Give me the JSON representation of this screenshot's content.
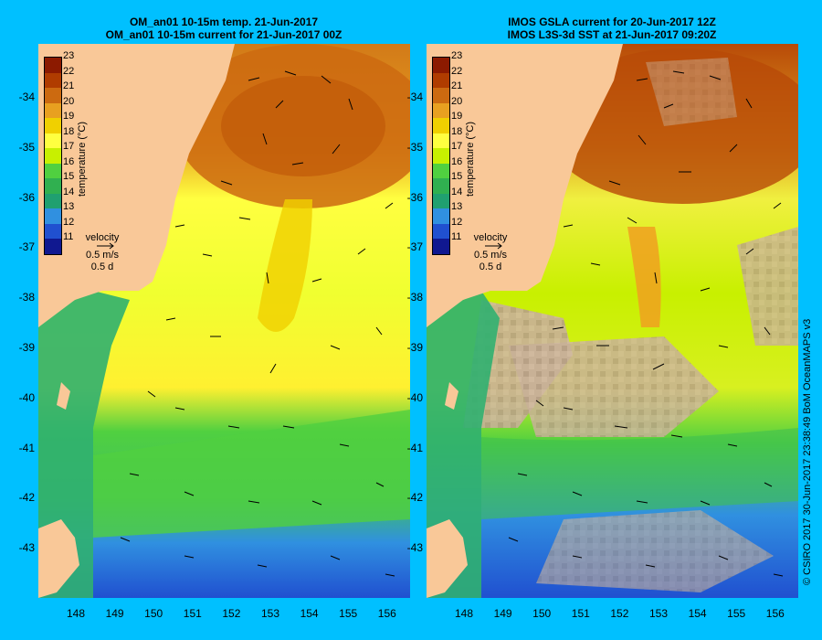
{
  "left_panel": {
    "title_line1": "OM_an01 10-15m temp. 21-Jun-2017",
    "title_line2": "OM_an01 10-15m current for 21-Jun-2017 00Z"
  },
  "right_panel": {
    "title_line1": "IMOS GSLA current for 20-Jun-2017 12Z",
    "title_line2": "IMOS L3S-3d SST at 21-Jun-2017 09:20Z"
  },
  "axes": {
    "lat_ticks": [
      "-34",
      "-35",
      "-36",
      "-37",
      "-38",
      "-39",
      "-40",
      "-41",
      "-42",
      "-43"
    ],
    "lon_ticks": [
      "148",
      "149",
      "150",
      "151",
      "152",
      "153",
      "154",
      "155",
      "156"
    ]
  },
  "colorbar": {
    "title": "temperature (°C)",
    "levels": [
      "23",
      "22",
      "21",
      "20",
      "19",
      "18",
      "17",
      "16",
      "15",
      "14",
      "13",
      "12",
      "11"
    ],
    "colors": [
      "#8c1a00",
      "#b03c00",
      "#cc6a10",
      "#e8a020",
      "#f0d000",
      "#ffff40",
      "#c8f000",
      "#50d040",
      "#30b050",
      "#20a070",
      "#3090e0",
      "#2050d0",
      "#101890"
    ]
  },
  "velocity_key": {
    "label": "velocity",
    "speed": "0.5 m/s",
    "time": "0.5 d"
  },
  "credit": "© CSIRO 2017  30-Jun-2017 23:38:49 BoM OceanMAPS v3",
  "colors": {
    "land": "#f9c898",
    "background": "#00c0ff"
  }
}
